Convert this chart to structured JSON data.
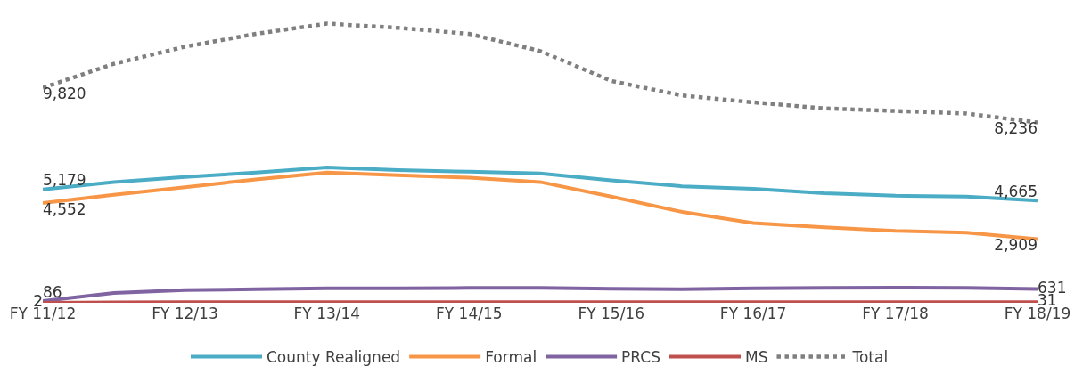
{
  "chart_data": {
    "type": "line",
    "categories": [
      "FY 11/12",
      null,
      "FY 12/13",
      null,
      "FY 13/14",
      null,
      "FY 14/15",
      null,
      "FY 15/16",
      null,
      "FY 16/17",
      null,
      "FY 17/18",
      null,
      "FY 18/19"
    ],
    "tick_labels": "x",
    "series": [
      {
        "name": "County Realigned",
        "color": "#4bacc6",
        "line_style": "solid",
        "values": [
          5179,
          5516,
          5751,
          5947,
          6182,
          6064,
          5986,
          5908,
          5595,
          5321,
          5203,
          5008,
          4890,
          4851,
          4665
        ],
        "value_labels": [
          "5,179",
          null,
          null,
          null,
          null,
          null,
          null,
          null,
          null,
          null,
          null,
          null,
          null,
          null,
          "4,665"
        ]
      },
      {
        "name": "Formal",
        "color": "#f79646",
        "line_style": "solid",
        "values": [
          4552,
          4930,
          5282,
          5634,
          5947,
          5829,
          5712,
          5516,
          4851,
          4147,
          3638,
          3443,
          3286,
          3208,
          2909
        ],
        "value_labels": [
          "4,552",
          null,
          null,
          null,
          null,
          null,
          null,
          null,
          null,
          null,
          null,
          null,
          null,
          null,
          "2,909"
        ]
      },
      {
        "name": "PRCS",
        "color": "#8064a2",
        "line_style": "solid",
        "values": [
          86,
          450,
          580,
          620,
          660,
          660,
          680,
          680,
          640,
          620,
          660,
          680,
          690,
          680,
          631
        ],
        "value_labels": [
          "86",
          null,
          null,
          null,
          null,
          null,
          null,
          null,
          null,
          null,
          null,
          null,
          null,
          null,
          "631"
        ]
      },
      {
        "name": "MS",
        "color": "#c0504d",
        "line_style": "solid",
        "values": [
          2,
          25,
          30,
          30,
          30,
          30,
          30,
          30,
          30,
          30,
          30,
          30,
          30,
          30,
          31
        ],
        "value_labels": [
          "2",
          null,
          null,
          null,
          null,
          null,
          null,
          null,
          null,
          null,
          null,
          null,
          null,
          null,
          "31"
        ]
      },
      {
        "name": "Total",
        "color": "#7f7f7f",
        "line_style": "dotted",
        "values": [
          9820,
          10915,
          11698,
          12285,
          12754,
          12559,
          12285,
          11502,
          10133,
          9468,
          9155,
          8881,
          8764,
          8646,
          8236
        ],
        "value_labels": [
          "9,820",
          null,
          null,
          null,
          null,
          null,
          null,
          null,
          null,
          null,
          null,
          null,
          null,
          null,
          "8,236"
        ]
      }
    ],
    "legend": "bottom",
    "marker": "none"
  }
}
